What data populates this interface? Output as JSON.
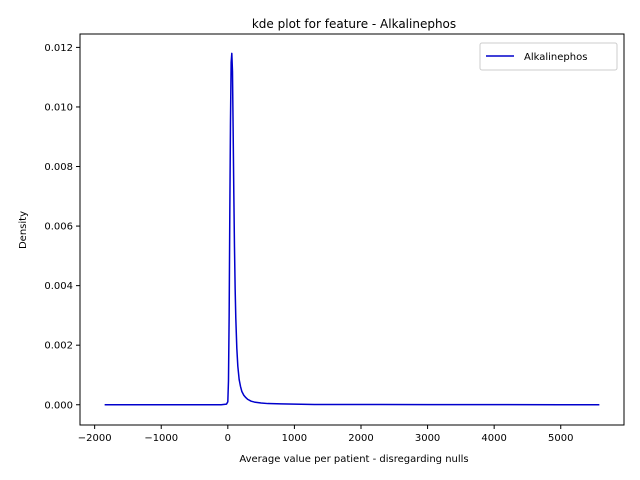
{
  "chart_data": {
    "type": "line",
    "title": "kde plot for feature -  Alkalinephos",
    "xlabel": "Average value per patient - disregarding nulls",
    "ylabel": "Density",
    "xlim": [
      -2220,
      5950
    ],
    "ylim": [
      -0.00068,
      0.01245
    ],
    "xticks": [
      -2000,
      -1000,
      0,
      1000,
      2000,
      3000,
      4000,
      5000
    ],
    "xtick_labels": [
      "−2000",
      "−1000",
      "0",
      "1000",
      "2000",
      "3000",
      "4000",
      "5000"
    ],
    "yticks": [
      0.0,
      0.002,
      0.004,
      0.006,
      0.008,
      0.01,
      0.012
    ],
    "ytick_labels": [
      "0.000",
      "0.002",
      "0.004",
      "0.006",
      "0.008",
      "0.010",
      "0.012"
    ],
    "grid": false,
    "legend": {
      "placement": "top-right",
      "entries": [
        "Alkalinephos"
      ]
    },
    "series": [
      {
        "name": "Alkalinephos",
        "color": "#0000cc",
        "x": [
          -1850,
          -1000,
          -300,
          -100,
          -20,
          0,
          10,
          20,
          30,
          40,
          50,
          60,
          70,
          75,
          80,
          90,
          100,
          110,
          120,
          135,
          150,
          170,
          190,
          210,
          240,
          270,
          300,
          350,
          400,
          500,
          600,
          800,
          1000,
          1300,
          1600,
          2000,
          3000,
          4000,
          5000,
          5580
        ],
        "y": [
          0.0,
          0.0,
          0.0,
          0.0,
          2e-05,
          0.0001,
          0.0008,
          0.003,
          0.0065,
          0.0095,
          0.0115,
          0.0118,
          0.0112,
          0.0102,
          0.0092,
          0.0071,
          0.0053,
          0.0039,
          0.0029,
          0.0019,
          0.0013,
          0.00085,
          0.00062,
          0.00045,
          0.00032,
          0.00024,
          0.00018,
          0.00012,
          9e-05,
          6e-05,
          4e-05,
          3e-05,
          2e-05,
          1e-05,
          1e-05,
          1e-05,
          5e-06,
          3e-06,
          2e-06,
          0.0
        ]
      }
    ]
  }
}
